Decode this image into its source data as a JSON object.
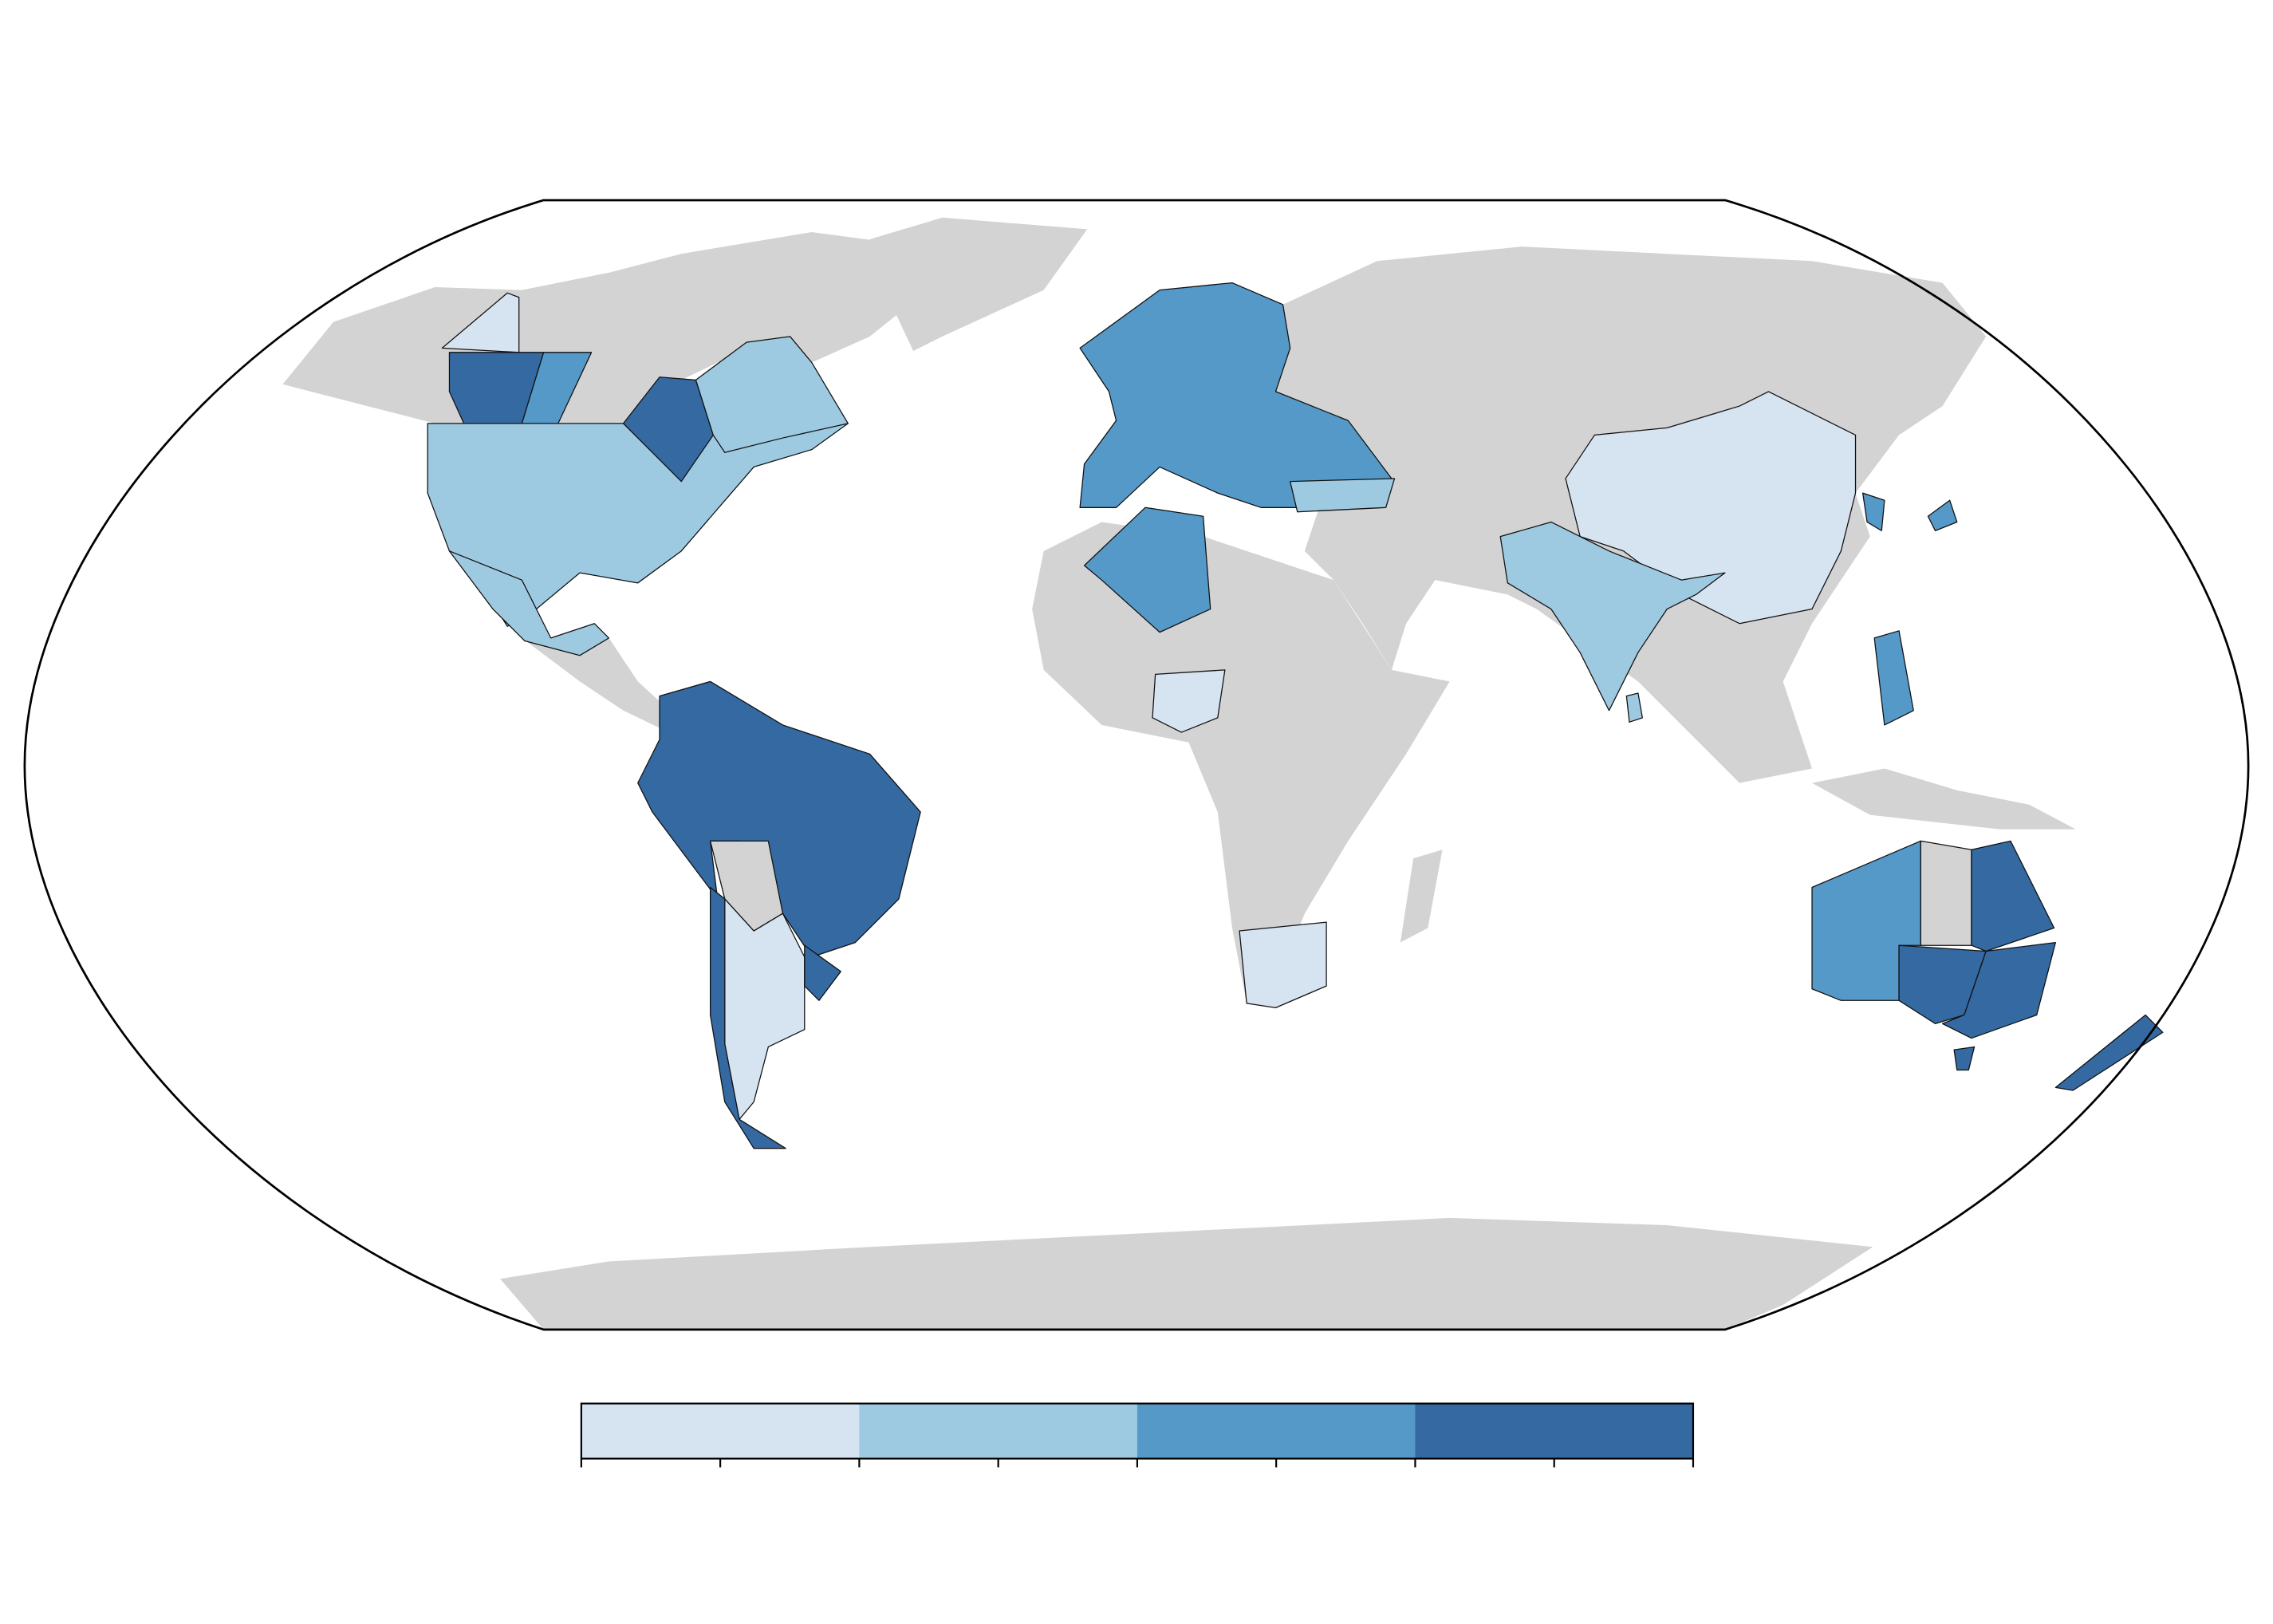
{
  "map": {
    "class_colors": [
      "#d6e4f1",
      "#9ecae1",
      "#5599c8",
      "#3469a1"
    ],
    "land_color": "#d3d3d3"
  }
}
